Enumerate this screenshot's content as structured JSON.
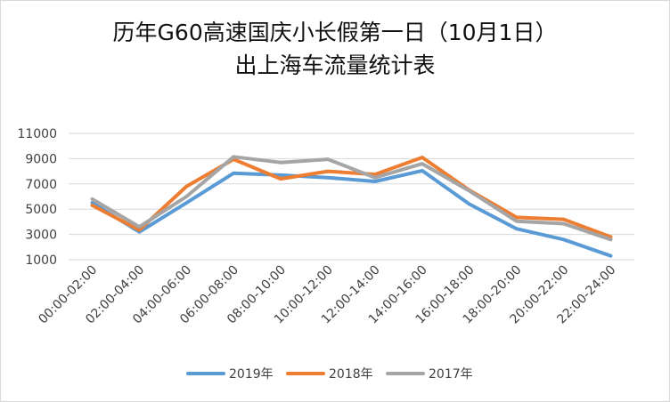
{
  "chart_data": {
    "type": "line",
    "title_line1": "历年G60高速国庆小长假第一日（10月1日）",
    "title_line2": "出上海车流量统计表",
    "categories": [
      "00:00-02:00",
      "02:00-04:00",
      "04:00-06:00",
      "06:00-08:00",
      "08:00-10:00",
      "10:00-12:00",
      "12:00-14:00",
      "14:00-16:00",
      "16:00-18:00",
      "18:00-20:00",
      "20:00-22:00",
      "22:00-24:00"
    ],
    "yticks": [
      1000,
      3000,
      5000,
      7000,
      9000,
      11000
    ],
    "yticklabels": [
      "1000",
      "3000",
      "5000",
      "7000",
      "9000",
      "11000"
    ],
    "ylim": [
      1000,
      11000
    ],
    "grid": true,
    "legend_position": "bottom",
    "series": [
      {
        "name": "2019年",
        "color": "#5b9bd5",
        "values": [
          5500,
          3200,
          5500,
          7850,
          7700,
          7500,
          7200,
          8050,
          5400,
          3450,
          2600,
          1300
        ]
      },
      {
        "name": "2018年",
        "color": "#ed7d31",
        "values": [
          5300,
          3350,
          6800,
          8950,
          7400,
          8000,
          7750,
          9100,
          6500,
          4350,
          4200,
          2800
        ]
      },
      {
        "name": "2017年",
        "color": "#a5a5a5",
        "values": [
          5800,
          3600,
          6000,
          9150,
          8700,
          8950,
          7500,
          8600,
          6450,
          4050,
          3850,
          2600
        ]
      }
    ]
  }
}
